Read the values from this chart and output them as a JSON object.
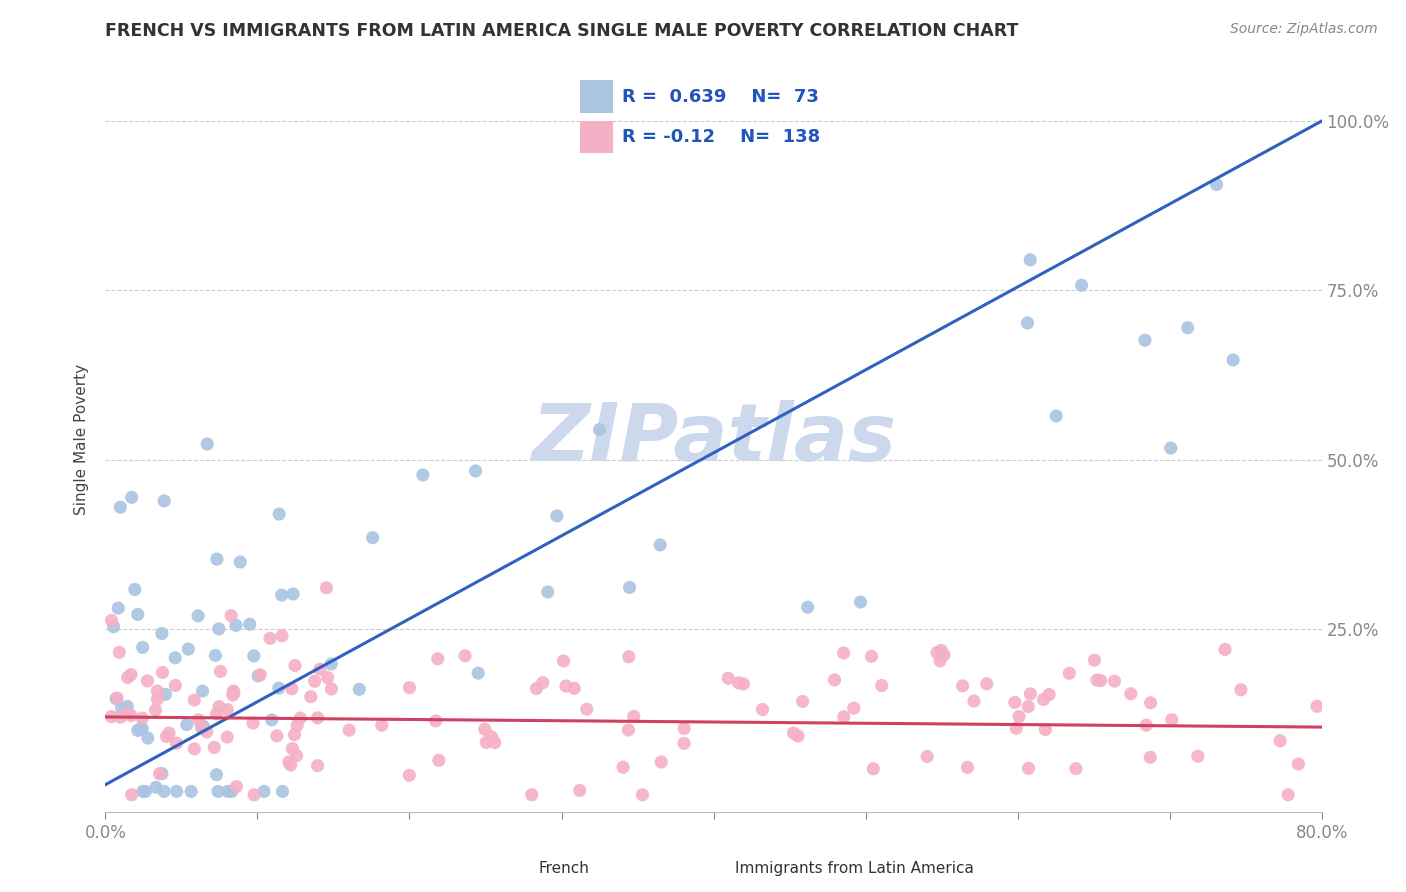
{
  "title": "FRENCH VS IMMIGRANTS FROM LATIN AMERICA SINGLE MALE POVERTY CORRELATION CHART",
  "source": "Source: ZipAtlas.com",
  "ylabel": "Single Male Poverty",
  "xlim": [
    0.0,
    0.8
  ],
  "ylim": [
    -0.02,
    1.08
  ],
  "series1_name": "French",
  "series1_R": 0.639,
  "series1_N": 73,
  "series1_color": "#aac4e2",
  "series1_line_color": "#3060c0",
  "series2_name": "Immigrants from Latin America",
  "series2_R": -0.12,
  "series2_N": 138,
  "series2_color": "#f4b0c4",
  "series2_line_color": "#d04060",
  "background_color": "#ffffff",
  "title_color": "#333333",
  "axis_label_color": "#444444",
  "tick_color": "#888888",
  "grid_color": "#cccccc",
  "legend_text_color": "#2255bb",
  "watermark_color": "#ccd8ec",
  "ytick_right_labels": [
    "25.0%",
    "50.0%",
    "75.0%",
    "100.0%"
  ],
  "ytick_right_values": [
    0.25,
    0.5,
    0.75,
    1.0
  ]
}
